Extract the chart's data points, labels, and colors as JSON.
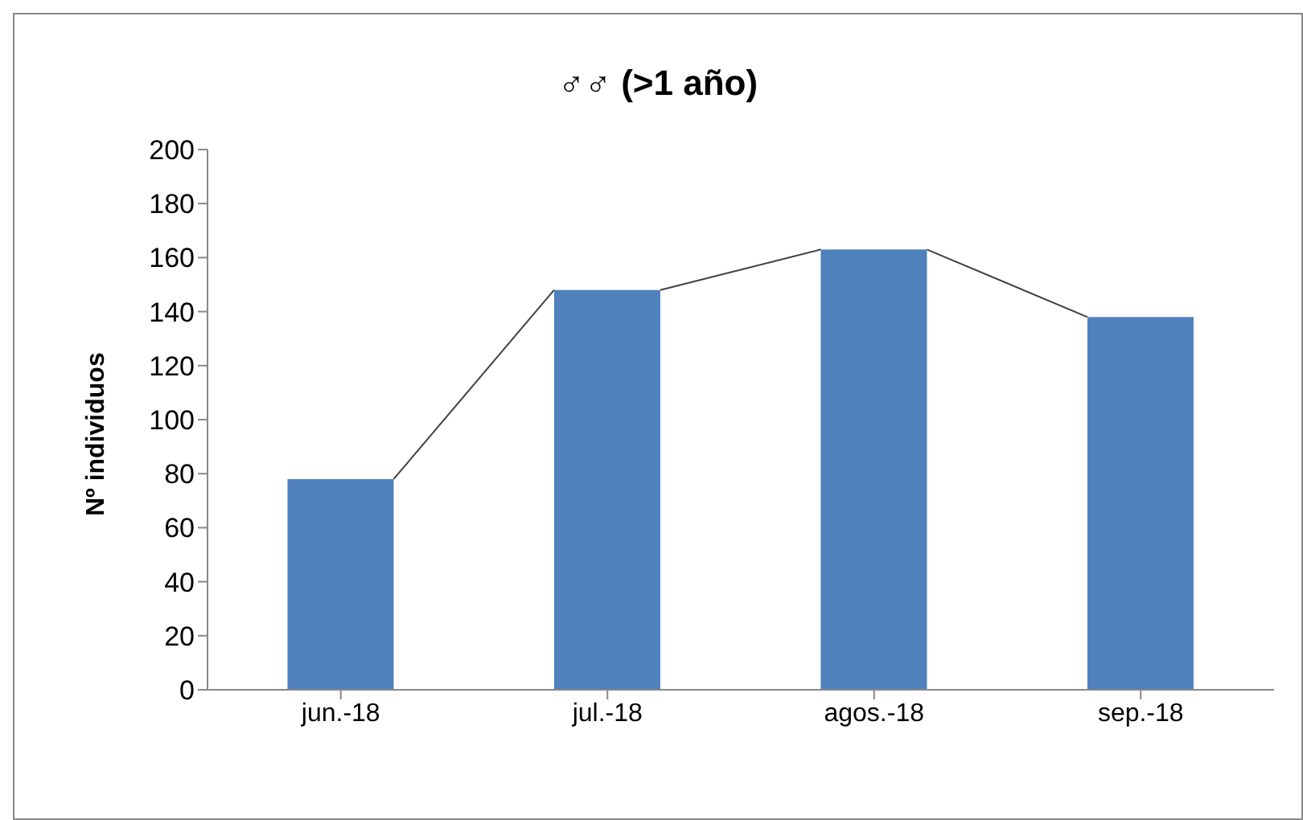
{
  "chart_data": {
    "type": "bar",
    "title": "♂♂ (>1 año)",
    "ylabel": "Nº individuos",
    "categories": [
      "jun.-18",
      "jul.-18",
      "agos.-18",
      "sep.-18"
    ],
    "values": [
      78,
      148,
      163,
      138
    ],
    "color": "#4f81bd",
    "ylim": [
      0,
      200
    ],
    "yticks": [
      0,
      20,
      40,
      60,
      80,
      100,
      120,
      140,
      160,
      180,
      200
    ],
    "grid": false,
    "legend": false
  }
}
